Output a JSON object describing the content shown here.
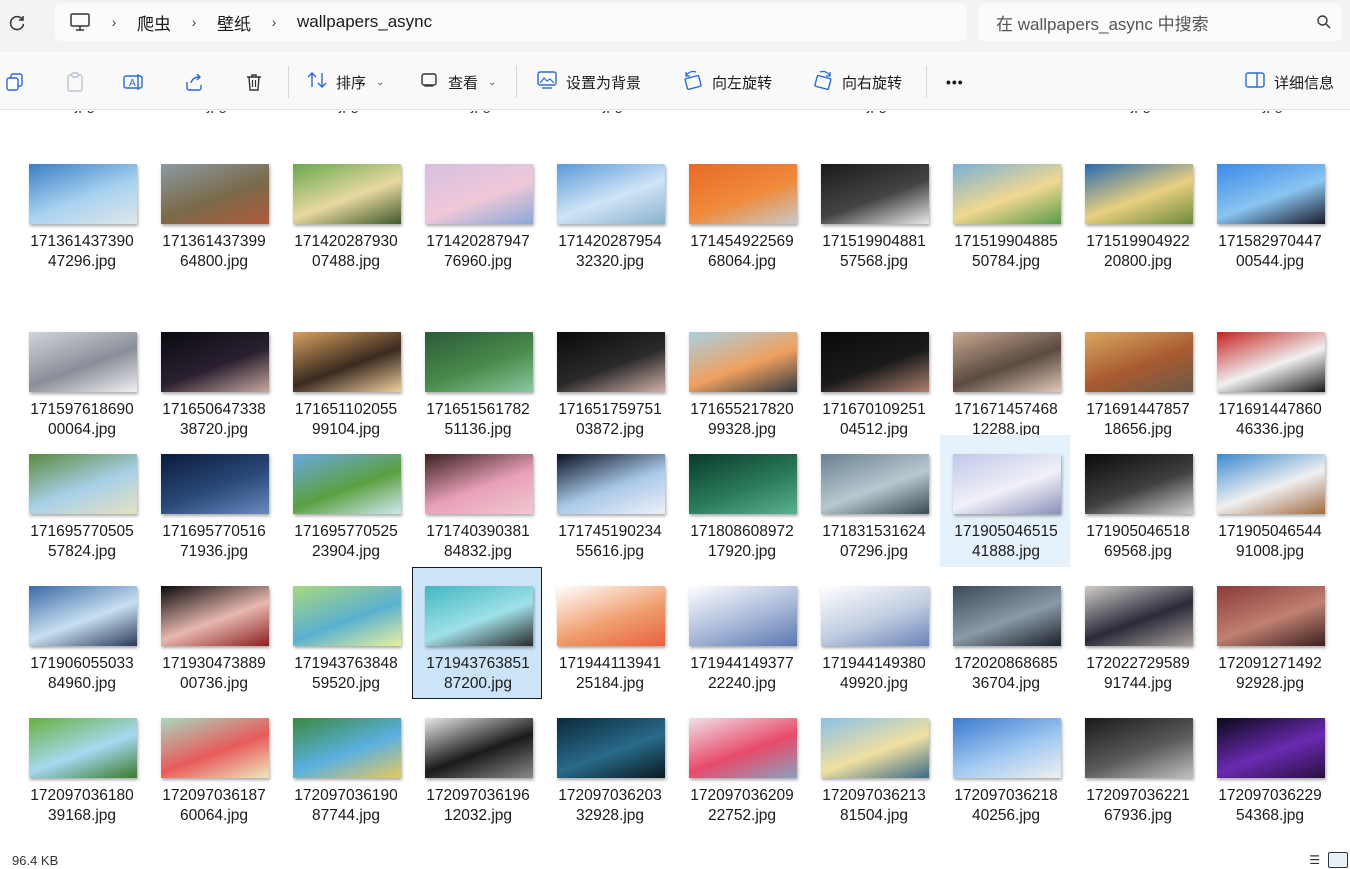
{
  "breadcrumb": [
    "爬虫",
    "壁纸",
    "wallpapers_async"
  ],
  "search": {
    "placeholder": "在 wallpapers_async 中搜索"
  },
  "toolbar": {
    "sort_label": "排序",
    "view_label": "查看",
    "set_bg_label": "设置为背景",
    "rotate_left_label": "向左旋转",
    "rotate_right_label": "向右旋转",
    "more_label": "•••",
    "details_label": "详细信息"
  },
  "cut_row_label": "jpg",
  "status": {
    "size": "96.4 KB"
  },
  "rows": [
    [
      {
        "l1": "171361437390",
        "l2": "47296.jpg",
        "c": [
          "#3a7fc4",
          "#a8d2f0",
          "#e0e6ea"
        ]
      },
      {
        "l1": "171361437399",
        "l2": "64800.jpg",
        "c": [
          "#8c9aa3",
          "#7a6a4a",
          "#b05a3a"
        ]
      },
      {
        "l1": "171420287930",
        "l2": "07488.jpg",
        "c": [
          "#6aa84f",
          "#e8d8a0",
          "#3d5a2a"
        ]
      },
      {
        "l1": "171420287947",
        "l2": "76960.jpg",
        "c": [
          "#d4bfe0",
          "#f0c8d8",
          "#8aa8d8"
        ]
      },
      {
        "l1": "171420287954",
        "l2": "32320.jpg",
        "c": [
          "#5a9ad8",
          "#cfe4f5",
          "#8ab0cc"
        ]
      },
      {
        "l1": "171454922569",
        "l2": "68064.jpg",
        "c": [
          "#e86a28",
          "#f08a3a",
          "#c8c8c8"
        ]
      },
      {
        "l1": "171519904881",
        "l2": "57568.jpg",
        "c": [
          "#1a1a1a",
          "#444444",
          "#e8e8e8"
        ]
      },
      {
        "l1": "171519904885",
        "l2": "50784.jpg",
        "c": [
          "#7ab0d8",
          "#f0d890",
          "#5a9a4a"
        ]
      },
      {
        "l1": "171519904922",
        "l2": "20800.jpg",
        "c": [
          "#2a6ab0",
          "#e8d080",
          "#6a8a3a"
        ]
      },
      {
        "l1": "171582970447",
        "l2": "00544.jpg",
        "c": [
          "#3a8ae8",
          "#8ac4f0",
          "#1a1a2a"
        ]
      }
    ],
    [
      {
        "l1": "171597618690",
        "l2": "00064.jpg",
        "c": [
          "#d0d4dc",
          "#8a8e98",
          "#f0f0f4"
        ]
      },
      {
        "l1": "171650647338",
        "l2": "38720.jpg",
        "c": [
          "#0a0a10",
          "#2a2030",
          "#c8a8a0"
        ]
      },
      {
        "l1": "171651102055",
        "l2": "99104.jpg",
        "c": [
          "#d8a060",
          "#3a2a20",
          "#f0d0a0"
        ]
      },
      {
        "l1": "171651561782",
        "l2": "51136.jpg",
        "c": [
          "#2a5a3a",
          "#4a8a4a",
          "#8ac8a0"
        ]
      },
      {
        "l1": "171651759751",
        "l2": "03872.jpg",
        "c": [
          "#0a0a0a",
          "#2a2a2a",
          "#d0b0a8"
        ]
      },
      {
        "l1": "171655217820",
        "l2": "99328.jpg",
        "c": [
          "#a8d0e0",
          "#f0a060",
          "#303a40"
        ]
      },
      {
        "l1": "171670109251",
        "l2": "04512.jpg",
        "c": [
          "#0a0a0a",
          "#1a1a1a",
          "#b08070"
        ]
      },
      {
        "l1": "171671457468",
        "l2": "12288.jpg",
        "c": [
          "#c8a890",
          "#5a4a40",
          "#e0c8b8"
        ]
      },
      {
        "l1": "171691447857",
        "l2": "18656.jpg",
        "c": [
          "#d8a860",
          "#a85a30",
          "#6a5a4a"
        ]
      },
      {
        "l1": "171691447860",
        "l2": "46336.jpg",
        "c": [
          "#c82020",
          "#f0f0f0",
          "#1a1a1a"
        ]
      }
    ],
    [
      {
        "l1": "171695770505",
        "l2": "57824.jpg",
        "c": [
          "#5a8a40",
          "#a8d0e8",
          "#e8e0c0"
        ]
      },
      {
        "l1": "171695770516",
        "l2": "71936.jpg",
        "c": [
          "#0a1a3a",
          "#2a4a7a",
          "#6a8ac0"
        ]
      },
      {
        "l1": "171695770525",
        "l2": "23904.jpg",
        "c": [
          "#6aa8e0",
          "#5aa040",
          "#d0e8f0"
        ]
      },
      {
        "l1": "171740390381",
        "l2": "84832.jpg",
        "c": [
          "#3a2020",
          "#e8a0b8",
          "#f0c8d0"
        ]
      },
      {
        "l1": "171745190234",
        "l2": "55616.jpg",
        "c": [
          "#0a1020",
          "#a8c8e8",
          "#f0f0f8"
        ]
      },
      {
        "l1": "171808608972",
        "l2": "17920.jpg",
        "c": [
          "#0a3a2a",
          "#2a7a5a",
          "#5ab090"
        ]
      },
      {
        "l1": "171831531624",
        "l2": "07296.jpg",
        "c": [
          "#6a8090",
          "#b8c8d0",
          "#3a4a50"
        ]
      },
      {
        "l1": "171905046515",
        "l2": "41888.jpg",
        "c": [
          "#c0c8e8",
          "#f0f0f8",
          "#8a90b8"
        ]
      },
      {
        "l1": "171905046518",
        "l2": "69568.jpg",
        "c": [
          "#0a0a0a",
          "#404040",
          "#d0d0d0"
        ]
      },
      {
        "l1": "171905046544",
        "l2": "91008.jpg",
        "c": [
          "#3a8ad0",
          "#f0f0f0",
          "#a06a40"
        ]
      }
    ],
    [
      {
        "l1": "171906055033",
        "l2": "84960.jpg",
        "c": [
          "#3a6aa8",
          "#c8e0f0",
          "#2a3a5a"
        ]
      },
      {
        "l1": "171930473889",
        "l2": "00736.jpg",
        "c": [
          "#0a0a0a",
          "#e8b8b0",
          "#8a2020"
        ]
      },
      {
        "l1": "171943763848",
        "l2": "59520.jpg",
        "c": [
          "#a8d880",
          "#5ab0d0",
          "#e8f0a0"
        ]
      },
      {
        "l1": "171943763851",
        "l2": "87200.jpg",
        "c": [
          "#40b8c0",
          "#a0e0e8",
          "#2a2a2a"
        ]
      },
      {
        "l1": "171944113941",
        "l2": "25184.jpg",
        "c": [
          "#ffffff",
          "#f0a070",
          "#e86040"
        ]
      },
      {
        "l1": "171944149377",
        "l2": "22240.jpg",
        "c": [
          "#ffffff",
          "#a8b8d8",
          "#5a78b0"
        ]
      },
      {
        "l1": "171944149380",
        "l2": "49920.jpg",
        "c": [
          "#ffffff",
          "#c0cce0",
          "#6a84b8"
        ]
      },
      {
        "l1": "172020868685",
        "l2": "36704.jpg",
        "c": [
          "#3a4a58",
          "#8a9aa8",
          "#1a2028"
        ]
      },
      {
        "l1": "172022729589",
        "l2": "91744.jpg",
        "c": [
          "#d0ccc8",
          "#2a2a3a",
          "#a8a098"
        ]
      },
      {
        "l1": "172091271492",
        "l2": "92928.jpg",
        "c": [
          "#8a3a3a",
          "#c08070",
          "#3a2020"
        ]
      }
    ],
    [
      {
        "l1": "172097036180",
        "l2": "39168.jpg",
        "c": [
          "#6ab040",
          "#a8d8f0",
          "#3a7a2a"
        ]
      },
      {
        "l1": "172097036187",
        "l2": "60064.jpg",
        "c": [
          "#a8d8c0",
          "#e85a5a",
          "#f0e8c0"
        ]
      },
      {
        "l1": "172097036190",
        "l2": "87744.jpg",
        "c": [
          "#3a8a40",
          "#5ab0e0",
          "#e8c860"
        ]
      },
      {
        "l1": "172097036196",
        "l2": "12032.jpg",
        "c": [
          "#e8e8e8",
          "#1a1a1a",
          "#8a8a8a"
        ]
      },
      {
        "l1": "172097036203",
        "l2": "32928.jpg",
        "c": [
          "#0a2a3a",
          "#2a6a8a",
          "#0a1a20"
        ]
      },
      {
        "l1": "172097036209",
        "l2": "22752.jpg",
        "c": [
          "#f0e0e8",
          "#e84a6a",
          "#8aa0c0"
        ]
      },
      {
        "l1": "172097036213",
        "l2": "81504.jpg",
        "c": [
          "#8ac0e8",
          "#f0e0a0",
          "#3a6a8a"
        ]
      },
      {
        "l1": "172097036218",
        "l2": "40256.jpg",
        "c": [
          "#3a7ad0",
          "#a0c8f0",
          "#f0f0f0"
        ]
      },
      {
        "l1": "172097036221",
        "l2": "67936.jpg",
        "c": [
          "#1a1a1a",
          "#5a5a5a",
          "#c0c0c0"
        ]
      },
      {
        "l1": "172097036229",
        "l2": "54368.jpg",
        "c": [
          "#0a0a1a",
          "#6a2ab0",
          "#2a1040"
        ]
      }
    ]
  ]
}
